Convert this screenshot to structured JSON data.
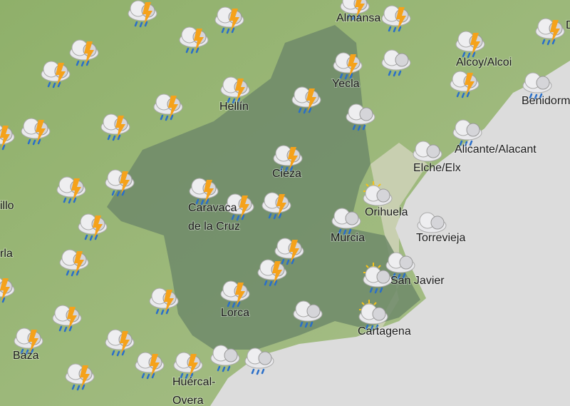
{
  "map": {
    "places": [
      {
        "label": "Almansa"
      },
      {
        "label": "Alcoy/Alcoi"
      },
      {
        "label": "Yecla"
      },
      {
        "label": "Hellín"
      },
      {
        "label": "Benidorm"
      },
      {
        "label": "Alicante/Alacant"
      },
      {
        "label": "Elche/Elx"
      },
      {
        "label": "Cieza"
      },
      {
        "label": "Caravaca"
      },
      {
        "label": "de la Cruz"
      },
      {
        "label": "Orihuela"
      },
      {
        "label": "Murcia"
      },
      {
        "label": "Torrevieja"
      },
      {
        "label": "San Javier"
      },
      {
        "label": "Lorca"
      },
      {
        "label": "Cartagena"
      },
      {
        "label": "Baza"
      },
      {
        "label": "Huércal-"
      },
      {
        "label": "Overa"
      },
      {
        "label": "illo"
      },
      {
        "label": "rla"
      },
      {
        "label": "D"
      }
    ]
  }
}
